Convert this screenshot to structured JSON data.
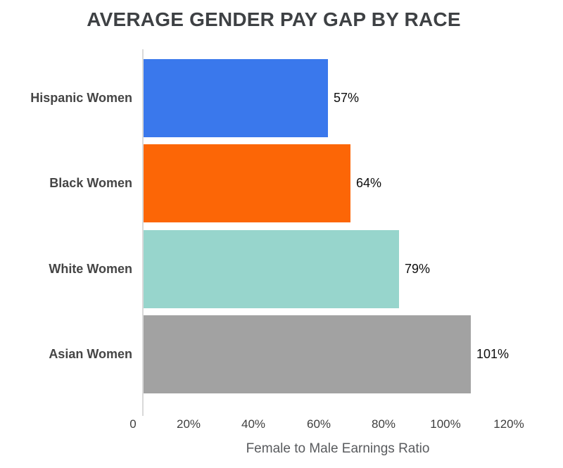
{
  "chart_data": {
    "type": "bar",
    "orientation": "horizontal",
    "title": "AVERAGE GENDER PAY GAP BY RACE",
    "xlabel": "Female to Male Earnings Ratio",
    "ylabel": "",
    "categories": [
      "Hispanic Women",
      "Black Women",
      "White Women",
      "Asian Women"
    ],
    "values": [
      57,
      64,
      79,
      101
    ],
    "value_labels": [
      "57%",
      "64%",
      "79%",
      "101%"
    ],
    "bar_colors": [
      "#3a78ec",
      "#fc6606",
      "#97d5cc",
      "#a2a2a2"
    ],
    "x_ticks": [
      "0",
      "20%",
      "40%",
      "60%",
      "80%",
      "100%",
      "120%"
    ],
    "x_tick_values": [
      0,
      20,
      40,
      60,
      80,
      100,
      120
    ],
    "xlim": [
      0,
      120
    ],
    "grid": false,
    "legend": false,
    "colors": {
      "background": "#ffffff",
      "title": "#3e4144",
      "category_label": "#454545",
      "value_label": "#0d0d0d",
      "tick_label": "#3f3f3f",
      "axis_title": "#595b5e",
      "axis_line": "#d9d9d9"
    }
  }
}
